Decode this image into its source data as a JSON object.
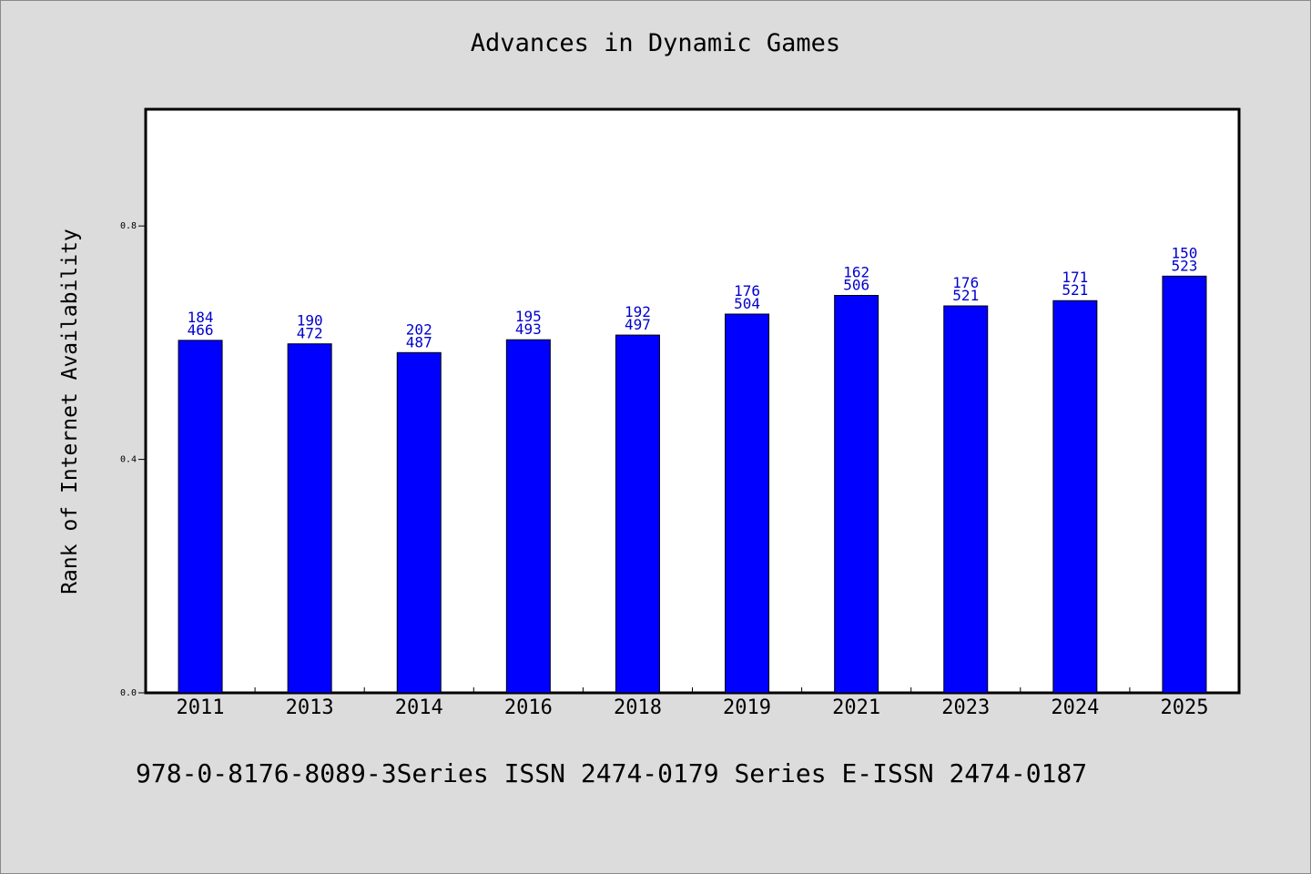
{
  "chart_data": {
    "type": "bar",
    "title": "Advances in Dynamic Games",
    "ylabel": "Rank of Internet Availability",
    "xlabel": "",
    "ylim": [
      0,
      1.0
    ],
    "yticks": [
      "0.0",
      "0.4",
      "0.8"
    ],
    "categories": [
      "2011",
      "2013",
      "2014",
      "2016",
      "2018",
      "2019",
      "2021",
      "2023",
      "2024",
      "2025"
    ],
    "values": [
      0.604,
      0.598,
      0.583,
      0.605,
      0.613,
      0.649,
      0.681,
      0.663,
      0.672,
      0.714
    ],
    "label_top": [
      "184",
      "190",
      "202",
      "195",
      "192",
      "176",
      "162",
      "176",
      "171",
      "150"
    ],
    "label_bottom": [
      "466",
      "472",
      "487",
      "493",
      "497",
      "504",
      "506",
      "521",
      "521",
      "523"
    ],
    "bar_color": "#0000ff",
    "label_color": "#0000cc",
    "grid": false,
    "legend": "none"
  },
  "footer": "978-0-8176-8089-3Series ISSN 2474-0179 Series E-ISSN 2474-0187"
}
